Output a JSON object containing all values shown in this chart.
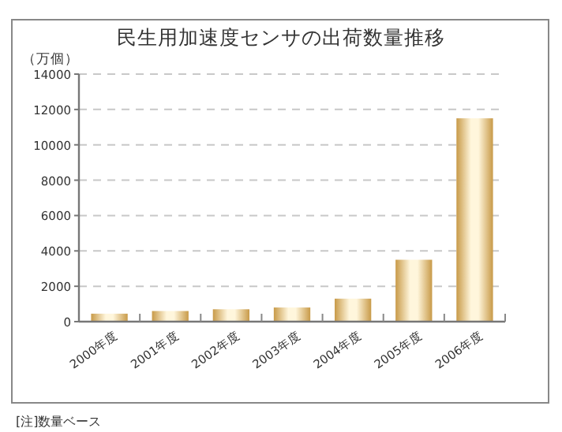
{
  "chart_data": {
    "type": "bar",
    "title": "民生用加速度センサの出荷数量推移",
    "ylabel": "（万個）",
    "categories": [
      "2000年度",
      "2001年度",
      "2002年度",
      "2003年度",
      "2004年度",
      "2005年度",
      "2006年度"
    ],
    "values": [
      450,
      600,
      700,
      800,
      1300,
      3500,
      11500
    ],
    "color": "#c89a48",
    "ylim": [
      0,
      14000
    ],
    "yticks": [
      0,
      2000,
      4000,
      6000,
      8000,
      10000,
      12000,
      14000
    ],
    "grid": "y",
    "annotations": [
      "[注]数量ベース"
    ]
  }
}
